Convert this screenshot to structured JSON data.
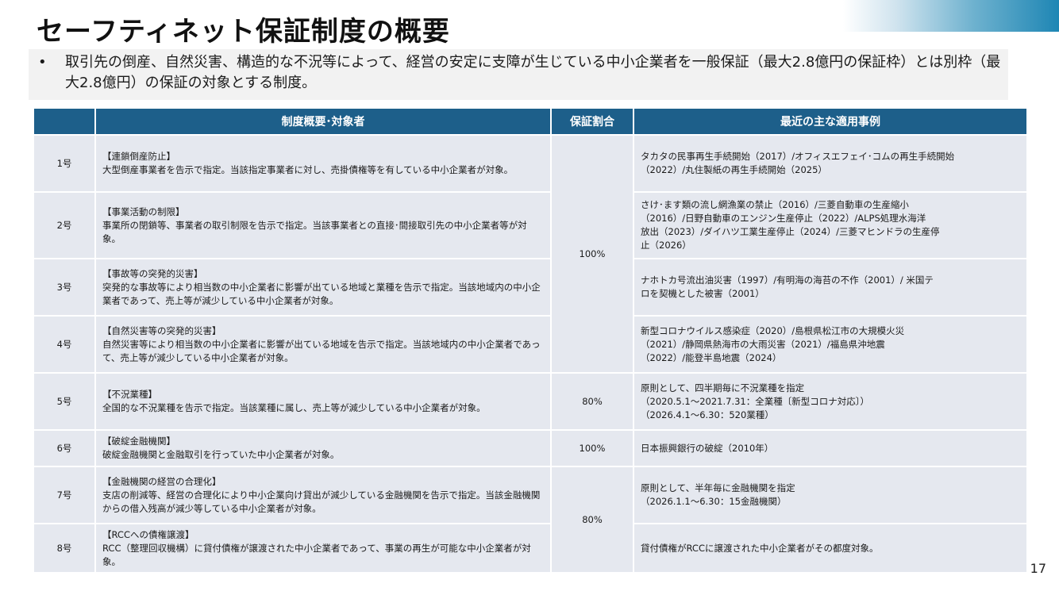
{
  "title": "セーフティネット保証制度の概要",
  "summary": {
    "bullet": "•",
    "text": "取引先の倒産、自然災害、構造的な不況等によって、経営の安定に支障が生じている中小企業者を一般保証（最大2.8億円の保証枠）とは別枠（最大2.8億円）の保証の対象とする制度。"
  },
  "table": {
    "headers": [
      "",
      "制度概要･対象者",
      "保証割合",
      "最近の主な適用事例"
    ],
    "rows": [
      {
        "num": "1号",
        "heading": "【連鎖倒産防止】",
        "body": "大型倒産事業者を告示で指定。当該指定事業者に対し、売掛債権等を有している中小企業者が対象。",
        "cases": "タカタの民事再生手続開始（2017）/オフィスエフェイ･コムの再生手続開始\n（2022）/丸住製紙の再生手続開始（2025）"
      },
      {
        "num": "2号",
        "heading": "【事業活動の制限】",
        "body": "事業所の閉鎖等、事業者の取引制限を告示で指定。当該事業者との直接･間接取引先の中小企業者等が対象。",
        "cases": "さけ･ます類の流し網漁業の禁止（2016）/三菱自動車の生産縮小\n（2016）/日野自動車のエンジン生産停止（2022）/ALPS処理水海洋\n放出（2023）/ダイハツ工業生産停止（2024）/三菱マヒンドラの生産停\n止（2026）"
      },
      {
        "num": "3号",
        "heading": "【事故等の突発的災害】",
        "body": "突発的な事故等により相当数の中小企業者に影響が出ている地域と業種を告示で指定。当該地域内の中小企業者であって、売上等が減少している中小企業者が対象。",
        "cases": "ナホトカ号流出油災害（1997）/有明海の海苔の不作（2001）/ 米国テ\nロを契機とした被害（2001）"
      },
      {
        "num": "4号",
        "heading": "【自然災害等の突発的災害】",
        "body": "自然災害等により相当数の中小企業者に影響が出ている地域を告示で指定。当該地域内の中小企業者であって、売上等が減少している中小企業者が対象。",
        "cases": "新型コロナウイルス感染症（2020）/島根県松江市の大規模火災\n（2021）/静岡県熱海市の大雨災害（2021）/福島県沖地震\n（2022）/能登半島地震（2024）"
      },
      {
        "num": "5号",
        "heading": "【不況業種】",
        "body": "全国的な不況業種を告示で指定。当該業種に属し、売上等が減少している中小企業者が対象。",
        "cases": "原則として、四半期毎に不況業種を指定\n（2020.5.1～2021.7.31：全業種〔新型コロナ対応〕）\n（2026.4.1～6.30：520業種）"
      },
      {
        "num": "6号",
        "heading": "【破綻金融機関】",
        "body": "破綻金融機関と金融取引を行っていた中小企業者が対象。",
        "cases": "日本振興銀行の破綻（2010年）"
      },
      {
        "num": "7号",
        "heading": "【金融機関の経営の合理化】",
        "body": "支店の削減等、経営の合理化により中小企業向け貸出が減少している金融機関を告示で指定。当該金融機関からの借入残高が減少等している中小企業者が対象。",
        "cases": "原則として、半年毎に金融機関を指定\n（2026.1.1～6.30：15金融機関）"
      },
      {
        "num": "8号",
        "heading": "【RCCへの債権譲渡】",
        "body": "RCC（整理回収機構）に貸付債権が譲渡された中小企業者であって、事業の再生が可能な中小企業者が対象。",
        "cases": "貸付債権がRCCに譲渡された中小企業者がその都度対象。"
      }
    ],
    "rates": {
      "group_1_4": "100%",
      "row_5": "80%",
      "row_6": "100%",
      "group_7_8": "80%"
    }
  },
  "page_number": "17"
}
